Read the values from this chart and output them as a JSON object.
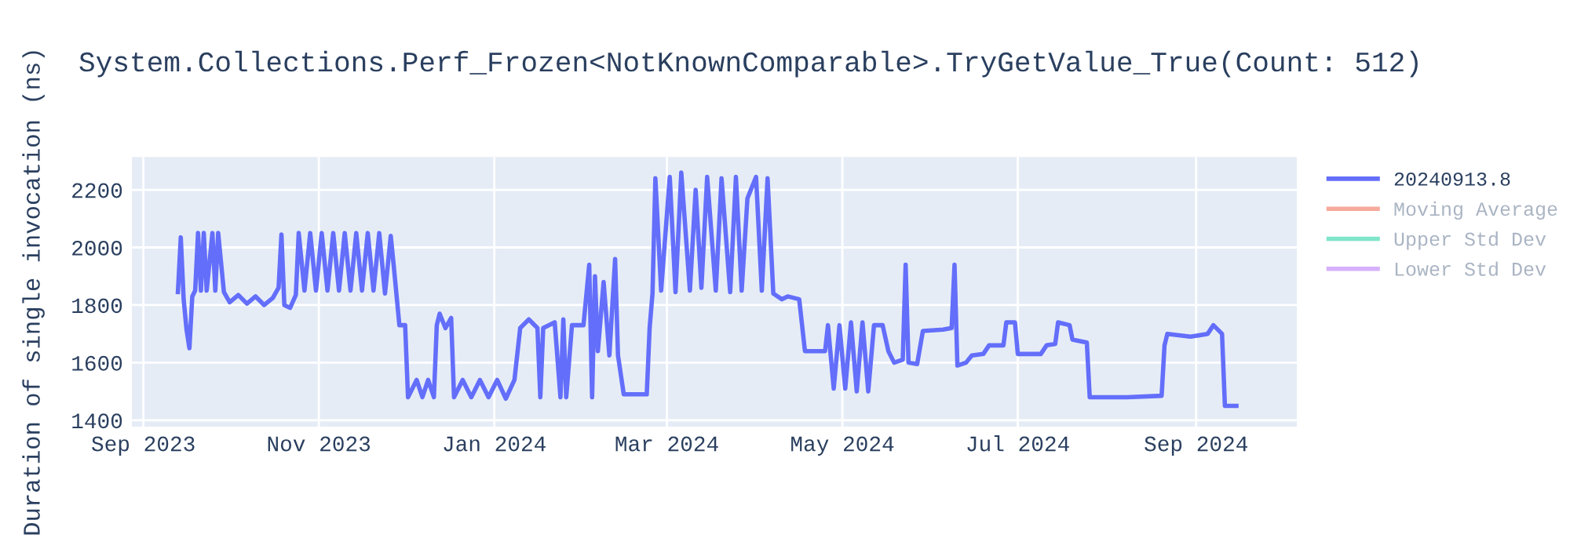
{
  "chart_data": {
    "type": "line",
    "title": "System.Collections.Perf_Frozen<NotKnownComparable>.TryGetValue_True(Count: 512)",
    "ylabel": "Duration of single invocation (ns)",
    "xlim": [
      "2023-08-28",
      "2024-10-06"
    ],
    "ylim": [
      1378,
      2314
    ],
    "xticks": [
      {
        "value": "2023-09-01",
        "label": "Sep 2023"
      },
      {
        "value": "2023-11-01",
        "label": "Nov 2023"
      },
      {
        "value": "2024-01-01",
        "label": "Jan 2024"
      },
      {
        "value": "2024-03-01",
        "label": "Mar 2024"
      },
      {
        "value": "2024-05-01",
        "label": "May 2024"
      },
      {
        "value": "2024-07-01",
        "label": "Jul 2024"
      },
      {
        "value": "2024-09-01",
        "label": "Sep 2024"
      }
    ],
    "yticks": [
      1400,
      1600,
      1800,
      2000,
      2200
    ],
    "grid": true,
    "legend": "top right",
    "marker": "none",
    "line_style": "solid",
    "series": [
      {
        "name": "20240913.8",
        "color": "#636efa",
        "x": [
          "2023-09-13",
          "2023-09-14",
          "2023-09-15",
          "2023-09-16",
          "2023-09-17",
          "2023-09-18",
          "2023-09-19",
          "2023-09-20",
          "2023-09-21",
          "2023-09-22",
          "2023-09-23",
          "2023-09-25",
          "2023-09-26",
          "2023-09-27",
          "2023-09-29",
          "2023-10-01",
          "2023-10-04",
          "2023-10-07",
          "2023-10-10",
          "2023-10-13",
          "2023-10-16",
          "2023-10-18",
          "2023-10-19",
          "2023-10-20",
          "2023-10-22",
          "2023-10-24",
          "2023-10-25",
          "2023-10-27",
          "2023-10-29",
          "2023-10-31",
          "2023-11-02",
          "2023-11-04",
          "2023-11-06",
          "2023-11-08",
          "2023-11-10",
          "2023-11-12",
          "2023-11-14",
          "2023-11-16",
          "2023-11-18",
          "2023-11-20",
          "2023-11-22",
          "2023-11-24",
          "2023-11-26",
          "2023-11-27",
          "2023-11-28",
          "2023-11-29",
          "2023-12-01",
          "2023-12-02",
          "2023-12-05",
          "2023-12-07",
          "2023-12-09",
          "2023-12-11",
          "2023-12-12",
          "2023-12-13",
          "2023-12-15",
          "2023-12-17",
          "2023-12-18",
          "2023-12-21",
          "2023-12-24",
          "2023-12-27",
          "2023-12-30",
          "2024-01-02",
          "2024-01-05",
          "2024-01-08",
          "2024-01-10",
          "2024-01-13",
          "2024-01-16",
          "2024-01-17",
          "2024-01-18",
          "2024-01-22",
          "2024-01-24",
          "2024-01-25",
          "2024-01-26",
          "2024-01-28",
          "2024-02-01",
          "2024-02-03",
          "2024-02-04",
          "2024-02-05",
          "2024-02-06",
          "2024-02-08",
          "2024-02-10",
          "2024-02-12",
          "2024-02-13",
          "2024-02-15",
          "2024-02-23",
          "2024-02-24",
          "2024-02-25",
          "2024-02-26",
          "2024-02-28",
          "2024-03-02",
          "2024-03-04",
          "2024-03-06",
          "2024-03-09",
          "2024-03-11",
          "2024-03-13",
          "2024-03-15",
          "2024-03-18",
          "2024-03-20",
          "2024-03-23",
          "2024-03-25",
          "2024-03-27",
          "2024-03-29",
          "2024-04-01",
          "2024-04-03",
          "2024-04-05",
          "2024-04-07",
          "2024-04-10",
          "2024-04-12",
          "2024-04-16",
          "2024-04-18",
          "2024-04-25",
          "2024-04-26",
          "2024-04-28",
          "2024-04-30",
          "2024-05-02",
          "2024-05-04",
          "2024-05-06",
          "2024-05-08",
          "2024-05-10",
          "2024-05-12",
          "2024-05-15",
          "2024-05-17",
          "2024-05-19",
          "2024-05-22",
          "2024-05-23",
          "2024-05-24",
          "2024-05-27",
          "2024-05-29",
          "2024-06-05",
          "2024-06-08",
          "2024-06-09",
          "2024-06-10",
          "2024-06-13",
          "2024-06-15",
          "2024-06-19",
          "2024-06-21",
          "2024-06-26",
          "2024-06-27",
          "2024-06-30",
          "2024-07-01",
          "2024-07-09",
          "2024-07-11",
          "2024-07-14",
          "2024-07-15",
          "2024-07-19",
          "2024-07-20",
          "2024-07-25",
          "2024-07-26",
          "2024-08-08",
          "2024-08-20",
          "2024-08-21",
          "2024-08-22",
          "2024-08-30",
          "2024-09-05",
          "2024-09-07",
          "2024-09-10",
          "2024-09-11",
          "2024-09-15"
        ],
        "values": [
          1845,
          2035,
          1820,
          1715,
          1650,
          1830,
          1850,
          2050,
          1850,
          2050,
          1850,
          2050,
          1850,
          2050,
          1845,
          1810,
          1835,
          1805,
          1830,
          1800,
          1825,
          1860,
          2045,
          1800,
          1790,
          1835,
          2050,
          1850,
          2050,
          1850,
          2050,
          1850,
          2050,
          1850,
          2050,
          1850,
          2050,
          1850,
          2050,
          1850,
          2050,
          1840,
          2040,
          1940,
          1835,
          1730,
          1730,
          1480,
          1540,
          1480,
          1540,
          1480,
          1730,
          1770,
          1720,
          1755,
          1480,
          1540,
          1480,
          1540,
          1480,
          1540,
          1475,
          1540,
          1720,
          1750,
          1720,
          1480,
          1720,
          1740,
          1480,
          1750,
          1480,
          1730,
          1730,
          1940,
          1480,
          1900,
          1640,
          1880,
          1625,
          1960,
          1625,
          1490,
          1490,
          1720,
          1840,
          2240,
          1850,
          2245,
          1845,
          2260,
          1850,
          2200,
          1860,
          2245,
          1850,
          2240,
          1845,
          2245,
          1850,
          2170,
          2245,
          1850,
          2240,
          1840,
          1820,
          1830,
          1820,
          1640,
          1640,
          1730,
          1510,
          1730,
          1510,
          1740,
          1500,
          1740,
          1500,
          1730,
          1730,
          1640,
          1600,
          1610,
          1940,
          1600,
          1595,
          1710,
          1715,
          1720,
          1940,
          1590,
          1600,
          1625,
          1630,
          1660,
          1660,
          1740,
          1740,
          1630,
          1630,
          1660,
          1665,
          1740,
          1730,
          1680,
          1670,
          1480,
          1480,
          1485,
          1660,
          1700,
          1690,
          1700,
          1730,
          1700,
          1450,
          1450
        ]
      },
      {
        "name": "Moving Average",
        "color": "#ef553b"
      },
      {
        "name": "Upper Std Dev",
        "color": "#00cc96"
      },
      {
        "name": "Lower Std Dev",
        "color": "#ab63fa"
      }
    ]
  }
}
